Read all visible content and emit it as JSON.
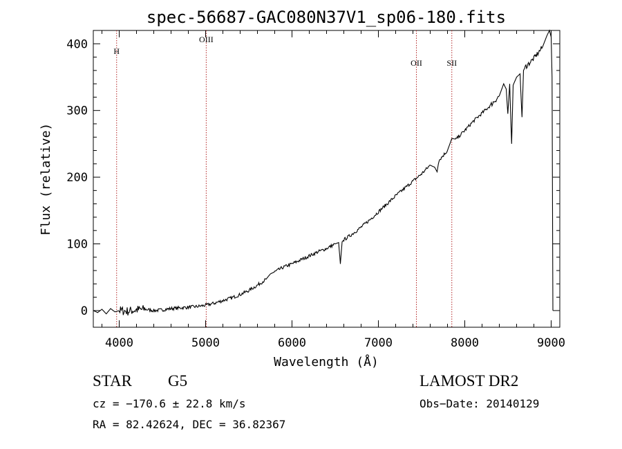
{
  "chart_data": {
    "type": "line",
    "title": "spec-56687-GAC080N37V1_sp06-180.fits",
    "xlabel": "Wavelength (Å)",
    "ylabel": "Flux (relative)",
    "xlim": [
      3700,
      9100
    ],
    "ylim": [
      -25,
      420
    ],
    "x_ticks": [
      4000,
      5000,
      6000,
      7000,
      8000,
      9000
    ],
    "y_ticks": [
      0,
      100,
      200,
      300,
      400
    ],
    "grid": false,
    "series": [
      {
        "x": [
          3700,
          3750,
          3800,
          3850,
          3900,
          3950,
          4000,
          4100,
          4200,
          4300,
          4400,
          4500,
          4600,
          4700,
          4800,
          4900,
          5000,
          5100,
          5200,
          5300,
          5400,
          5500,
          5600,
          5700,
          5750,
          5800,
          5900,
          6000,
          6100,
          6200,
          6300,
          6400,
          6500,
          6540,
          6560,
          6580,
          6600,
          6700,
          6800,
          6900,
          7000,
          7100,
          7200,
          7300,
          7400,
          7500,
          7600,
          7650,
          7680,
          7700,
          7800,
          7850,
          7900,
          8000,
          8100,
          8200,
          8300,
          8400,
          8450,
          8480,
          8498,
          8520,
          8542,
          8560,
          8600,
          8640,
          8662,
          8680,
          8700,
          8800,
          8900,
          8950,
          8980,
          9000,
          9010,
          9020
        ],
        "y": [
          0,
          -3,
          2,
          -5,
          3,
          -2,
          0,
          -1,
          1,
          2,
          0,
          1,
          3,
          4,
          5,
          6,
          8,
          11,
          15,
          19,
          24,
          30,
          38,
          47,
          55,
          58,
          65,
          70,
          76,
          82,
          88,
          93,
          100,
          102,
          70,
          103,
          106,
          115,
          125,
          136,
          148,
          160,
          172,
          183,
          194,
          205,
          218,
          215,
          208,
          225,
          240,
          258,
          257,
          270,
          284,
          296,
          308,
          322,
          340,
          332,
          295,
          340,
          250,
          338,
          350,
          355,
          290,
          360,
          365,
          378,
          395,
          412,
          420,
          410,
          350,
          0
        ]
      }
    ],
    "line_markers": [
      {
        "label": "H",
        "x": 3970
      },
      {
        "label": "OIII",
        "x": 5007
      },
      {
        "label": "OII",
        "x": 7440
      },
      {
        "label": "SII",
        "x": 7850
      }
    ]
  },
  "footer": {
    "object_type": "STAR",
    "subclass": "G5",
    "cz_line": "cz = −170.6 ± 22.8 km/s",
    "radec_line": "RA =  82.42624, DEC =  36.82367",
    "survey": "LAMOST DR2",
    "obs_date": "Obs−Date: 20140129"
  }
}
